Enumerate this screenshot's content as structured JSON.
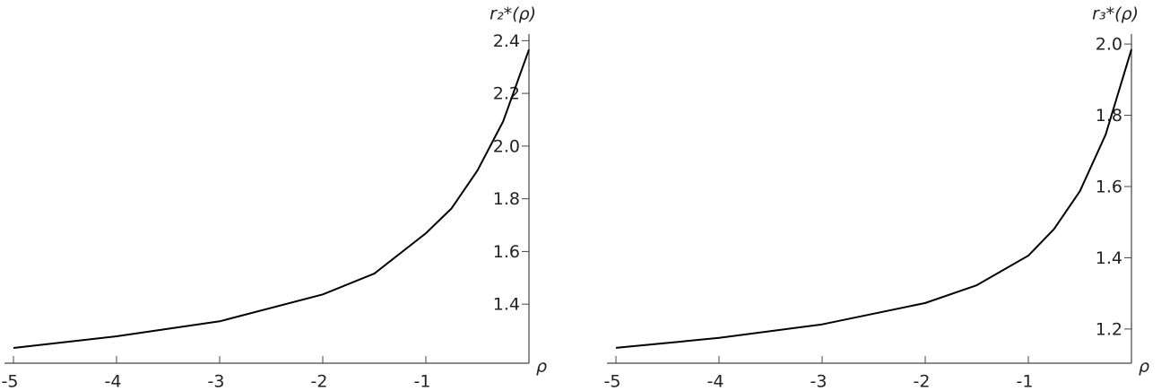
{
  "chart_data": [
    {
      "type": "line",
      "xlabel": "ρ",
      "ylabel": "r₂*(ρ)",
      "x": [
        -5,
        -4,
        -3,
        -2,
        -1.5,
        -1,
        -0.75,
        -0.5,
        -0.25,
        0
      ],
      "series": [
        {
          "color": "#000000",
          "values": [
            1.234,
            1.278,
            1.335,
            1.437,
            1.516,
            1.669,
            1.764,
            1.907,
            2.094,
            2.366
          ]
        }
      ],
      "xlim": [
        -5,
        0
      ],
      "ylim": [
        1.176,
        2.425
      ],
      "xticks": [
        -5,
        -4,
        -3,
        -2,
        -1
      ],
      "yticks": [
        1.4,
        1.6,
        1.8,
        {
          "value": 2.0,
          "label": "2.0"
        },
        2.2,
        2.4
      ]
    },
    {
      "type": "line",
      "xlabel": "ρ",
      "ylabel": "r₃*(ρ)",
      "x": [
        -5,
        -4,
        -3,
        -2,
        -1.5,
        -1,
        -0.75,
        -0.5,
        -0.25,
        0
      ],
      "series": [
        {
          "color": "#000000",
          "values": [
            1.147,
            1.175,
            1.213,
            1.273,
            1.323,
            1.406,
            1.481,
            1.587,
            1.746,
            1.985
          ]
        }
      ],
      "xlim": [
        -5,
        0
      ],
      "ylim": [
        1.104,
        2.028
      ],
      "xticks": [
        -5,
        -4,
        -3,
        -2,
        -1
      ],
      "yticks": [
        1.2,
        1.4,
        1.6,
        1.8,
        {
          "value": 2.0,
          "label": "2.0"
        }
      ]
    }
  ]
}
